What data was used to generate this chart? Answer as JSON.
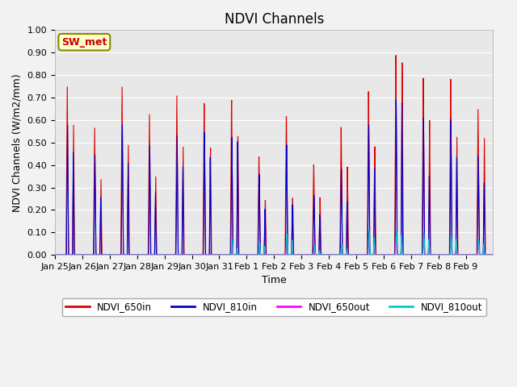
{
  "title": "NDVI Channels",
  "xlabel": "Time",
  "ylabel": "NDVI Channels (W/m2/mm)",
  "ylim": [
    0.0,
    1.0
  ],
  "yticks": [
    0.0,
    0.1,
    0.2,
    0.3,
    0.4,
    0.5,
    0.6,
    0.7,
    0.8,
    0.9,
    1.0
  ],
  "legend_labels": [
    "NDVI_650in",
    "NDVI_810in",
    "NDVI_650out",
    "NDVI_810out"
  ],
  "legend_colors": [
    "#dd0000",
    "#0000cc",
    "#ff00ff",
    "#00cccc"
  ],
  "annotation_text": "SW_met",
  "annotation_color": "#cc0000",
  "annotation_bg": "#ffffcc",
  "bg_color": "#e8e8e8",
  "days": [
    "Jan 25",
    "Jan 26",
    "Jan 27",
    "Jan 28",
    "Jan 29",
    "Jan 30",
    "Jan 31",
    "Feb 1",
    "Feb 2",
    "Feb 3",
    "Feb 4",
    "Feb 5",
    "Feb 6",
    "Feb 7",
    "Feb 8",
    "Feb 9"
  ],
  "main_650in": [
    0.75,
    0.57,
    0.76,
    0.64,
    0.73,
    0.7,
    0.72,
    0.46,
    0.65,
    0.42,
    0.59,
    0.75,
    0.91,
    0.8,
    0.79,
    0.65
  ],
  "sec_650in": [
    0.58,
    0.34,
    0.5,
    0.36,
    0.5,
    0.5,
    0.56,
    0.26,
    0.27,
    0.27,
    0.41,
    0.5,
    0.88,
    0.61,
    0.53,
    0.52
  ],
  "main_810in": [
    0.58,
    0.45,
    0.59,
    0.5,
    0.55,
    0.57,
    0.55,
    0.38,
    0.52,
    0.28,
    0.4,
    0.6,
    0.71,
    0.62,
    0.61,
    0.44
  ],
  "sec_810in": [
    0.46,
    0.26,
    0.42,
    0.29,
    0.41,
    0.46,
    0.54,
    0.22,
    0.24,
    0.19,
    0.25,
    0.4,
    0.7,
    0.36,
    0.44,
    0.32
  ],
  "main_650out": [
    0.0,
    0.0,
    0.0,
    0.0,
    0.0,
    0.0,
    0.03,
    0.02,
    0.08,
    0.03,
    0.04,
    0.07,
    0.08,
    0.07,
    0.06,
    0.05
  ],
  "sec_650out": [
    0.0,
    0.0,
    0.0,
    0.0,
    0.0,
    0.0,
    0.01,
    0.01,
    0.07,
    0.02,
    0.02,
    0.05,
    0.06,
    0.06,
    0.05,
    0.04
  ],
  "main_810out": [
    0.0,
    0.0,
    0.0,
    0.0,
    0.0,
    0.0,
    0.07,
    0.06,
    0.1,
    0.04,
    0.05,
    0.11,
    0.11,
    0.1,
    0.09,
    0.07
  ],
  "sec_810out": [
    0.0,
    0.0,
    0.0,
    0.0,
    0.0,
    0.0,
    0.03,
    0.04,
    0.07,
    0.02,
    0.03,
    0.08,
    0.09,
    0.07,
    0.07,
    0.05
  ],
  "title_fontsize": 12,
  "label_fontsize": 9,
  "tick_fontsize": 8
}
